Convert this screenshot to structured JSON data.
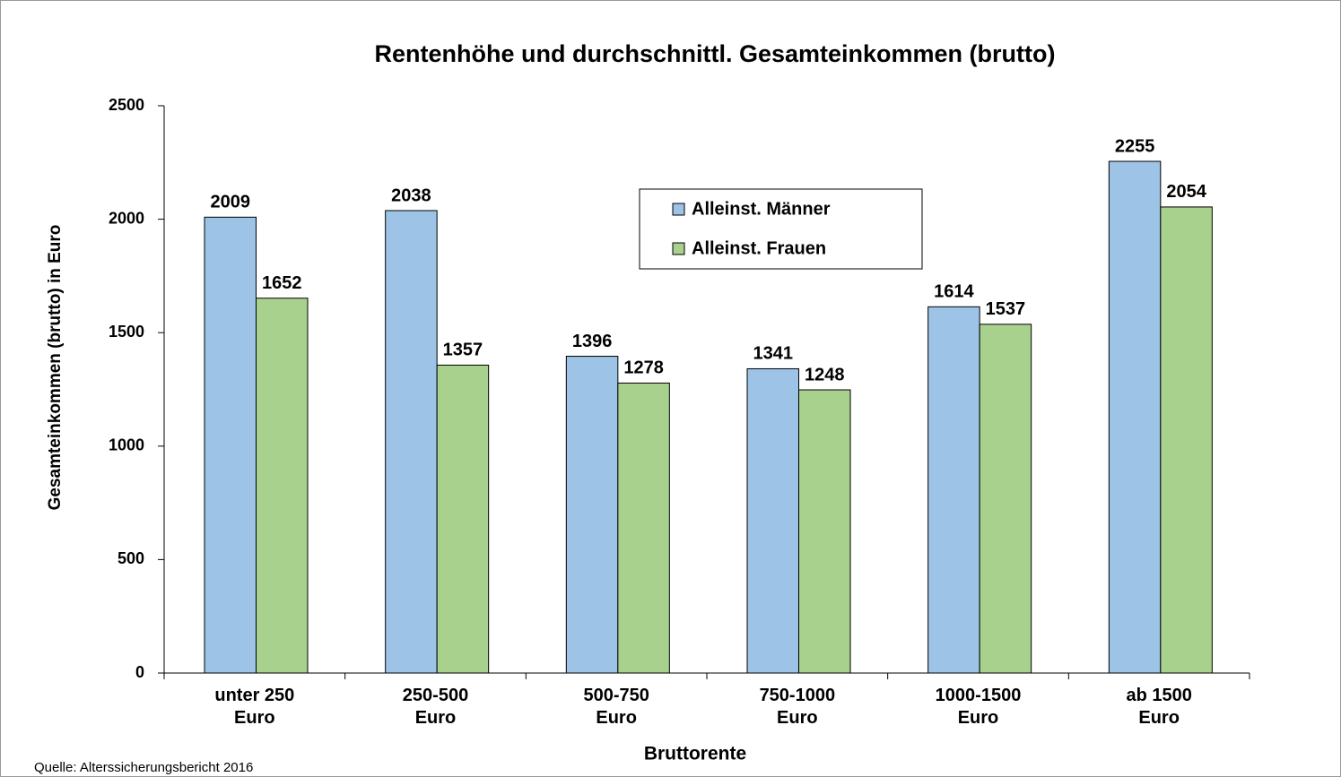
{
  "chart_data": {
    "type": "bar",
    "title": "Rentenhöhe und durchschnittl. Gesamteinkommen (brutto)",
    "x_label": "Bruttorente",
    "y_label": "Gesamteinkommen (brutto) in Euro",
    "source": "Quelle: Alterssicherungsbericht  2016",
    "categories": [
      "unter 250 Euro",
      "250-500 Euro",
      "500-750 Euro",
      "750-1000 Euro",
      "1000-1500 Euro",
      "ab 1500 Euro"
    ],
    "series": [
      {
        "name": "Alleinst. Männer",
        "color": "#9dc3e6",
        "values": [
          2009,
          2038,
          1396,
          1341,
          1614,
          2255
        ]
      },
      {
        "name": "Alleinst. Frauen",
        "color": "#a9d18e",
        "values": [
          1652,
          1357,
          1278,
          1248,
          1537,
          2054
        ]
      }
    ],
    "ylim": [
      0,
      2500
    ],
    "yticks": [
      0,
      500,
      1000,
      1500,
      2000,
      2500
    ],
    "grid": false,
    "legend": "upper center"
  }
}
